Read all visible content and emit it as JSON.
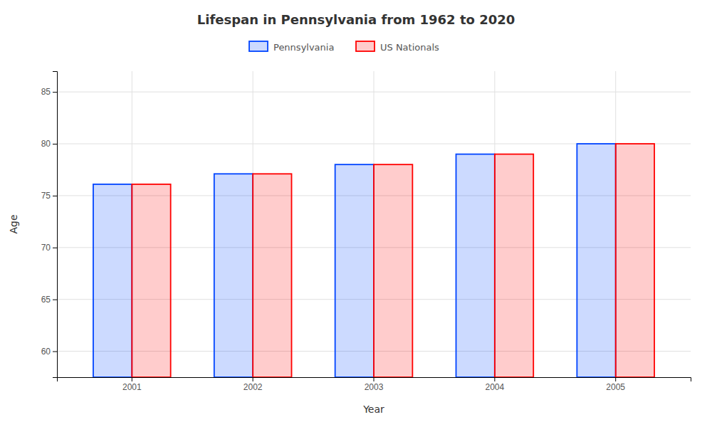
{
  "chart_data": {
    "type": "bar",
    "title": "Lifespan in Pennsylvania from 1962 to 2020",
    "xlabel": "Year",
    "ylabel": "Age",
    "categories": [
      "2001",
      "2002",
      "2003",
      "2004",
      "2005"
    ],
    "series": [
      {
        "name": "Pennsylvania",
        "color": "#0044ff",
        "values": [
          76.1,
          77.1,
          78.0,
          79.0,
          80.0
        ]
      },
      {
        "name": "US Nationals",
        "color": "#ff0000",
        "values": [
          76.1,
          77.1,
          78.0,
          79.0,
          80.0
        ]
      }
    ],
    "ylim": [
      57.5,
      87
    ],
    "yticks": [
      60,
      65,
      70,
      75,
      80,
      85
    ],
    "grid": true,
    "legend": "top"
  }
}
